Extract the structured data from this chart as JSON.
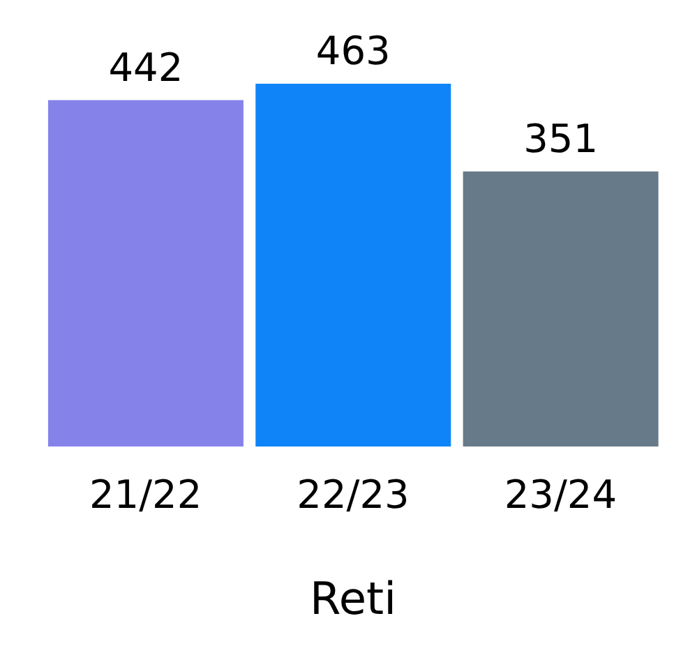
{
  "chart_data": {
    "type": "bar",
    "categories": [
      "21/22",
      "22/23",
      "23/24"
    ],
    "values": [
      442,
      463,
      351
    ],
    "colors": [
      "#8583e9",
      "#0f84f8",
      "#677a89"
    ],
    "data_labels": true,
    "xlabel": "Reti"
  }
}
